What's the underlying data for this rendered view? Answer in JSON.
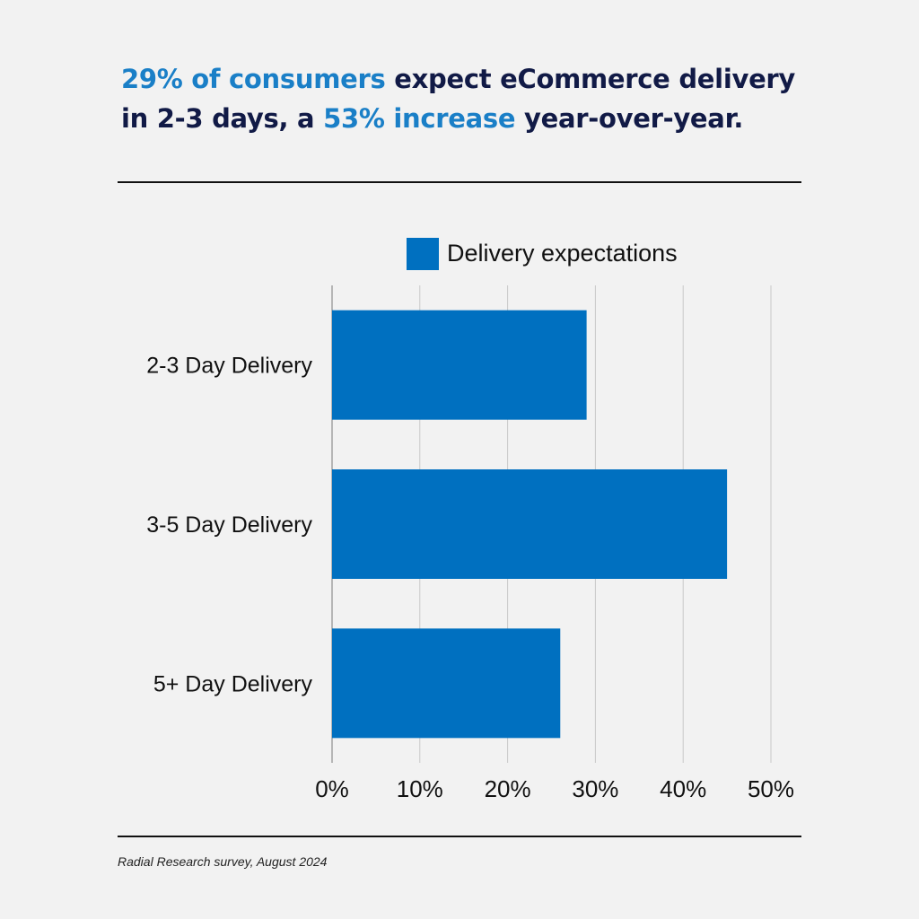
{
  "headline": {
    "part1": "29% of consumers",
    "part2": " expect eCommerce delivery in 2-3 days, a ",
    "part3": "53% increase",
    "part4": " year-over-year."
  },
  "source": "Radial Research survey, August 2024",
  "colors": {
    "bar": "#0070c0",
    "highlight": "#1a7fc7",
    "headline": "#111a46",
    "grid": "#c8c8c8"
  },
  "chart_data": {
    "type": "bar",
    "orientation": "horizontal",
    "categories": [
      "2-3 Day Delivery",
      "3-5 Day Delivery",
      "5+ Day Delivery"
    ],
    "series": [
      {
        "name": "Delivery expectations",
        "values": [
          29,
          45,
          26
        ]
      }
    ],
    "xlim": [
      0,
      50
    ],
    "xticks": [
      "0%",
      "10%",
      "20%",
      "30%",
      "40%",
      "50%"
    ],
    "grid": true,
    "legend": "top"
  }
}
